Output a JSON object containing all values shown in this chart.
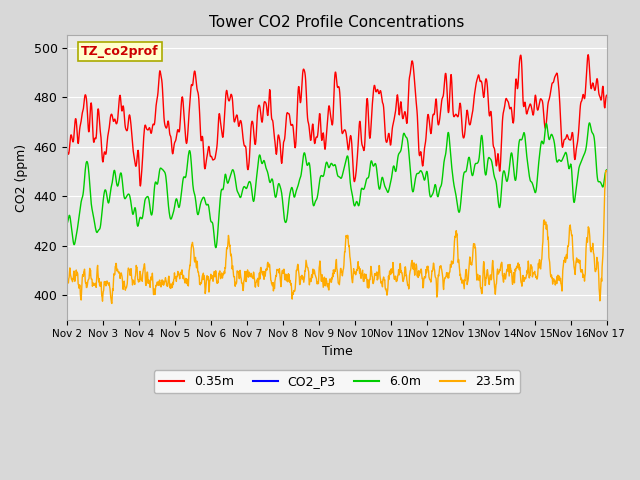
{
  "title": "Tower CO2 Profile Concentrations",
  "xlabel": "Time",
  "ylabel": "CO2 (ppm)",
  "ylim": [
    390,
    505
  ],
  "xlim_days": [
    2,
    17
  ],
  "annotation_text": "TZ_co2prof",
  "annotation_color": "#cc0000",
  "annotation_bg": "#ffffcc",
  "annotation_border": "#aaaa00",
  "colors": {
    "0.35m": "#ff0000",
    "CO2_P3": "#0000ff",
    "6.0m": "#00cc00",
    "23.5m": "#ffaa00"
  },
  "line_width": 1.0,
  "background_color": "#d8d8d8",
  "plot_bg": "#e8e8e8",
  "grid_color": "#ffffff",
  "tick_labels": [
    "Nov 2",
    "Nov 3",
    "Nov 4",
    "Nov 5",
    "Nov 6",
    "Nov 7",
    "Nov 8",
    "Nov 9",
    "Nov 10",
    "Nov 11",
    "Nov 12",
    "Nov 13",
    "Nov 14",
    "Nov 15",
    "Nov 16",
    "Nov 17"
  ],
  "tick_positions": [
    2,
    3,
    4,
    5,
    6,
    7,
    8,
    9,
    10,
    11,
    12,
    13,
    14,
    15,
    16,
    17
  ],
  "figsize": [
    6.4,
    4.8
  ],
  "dpi": 100
}
